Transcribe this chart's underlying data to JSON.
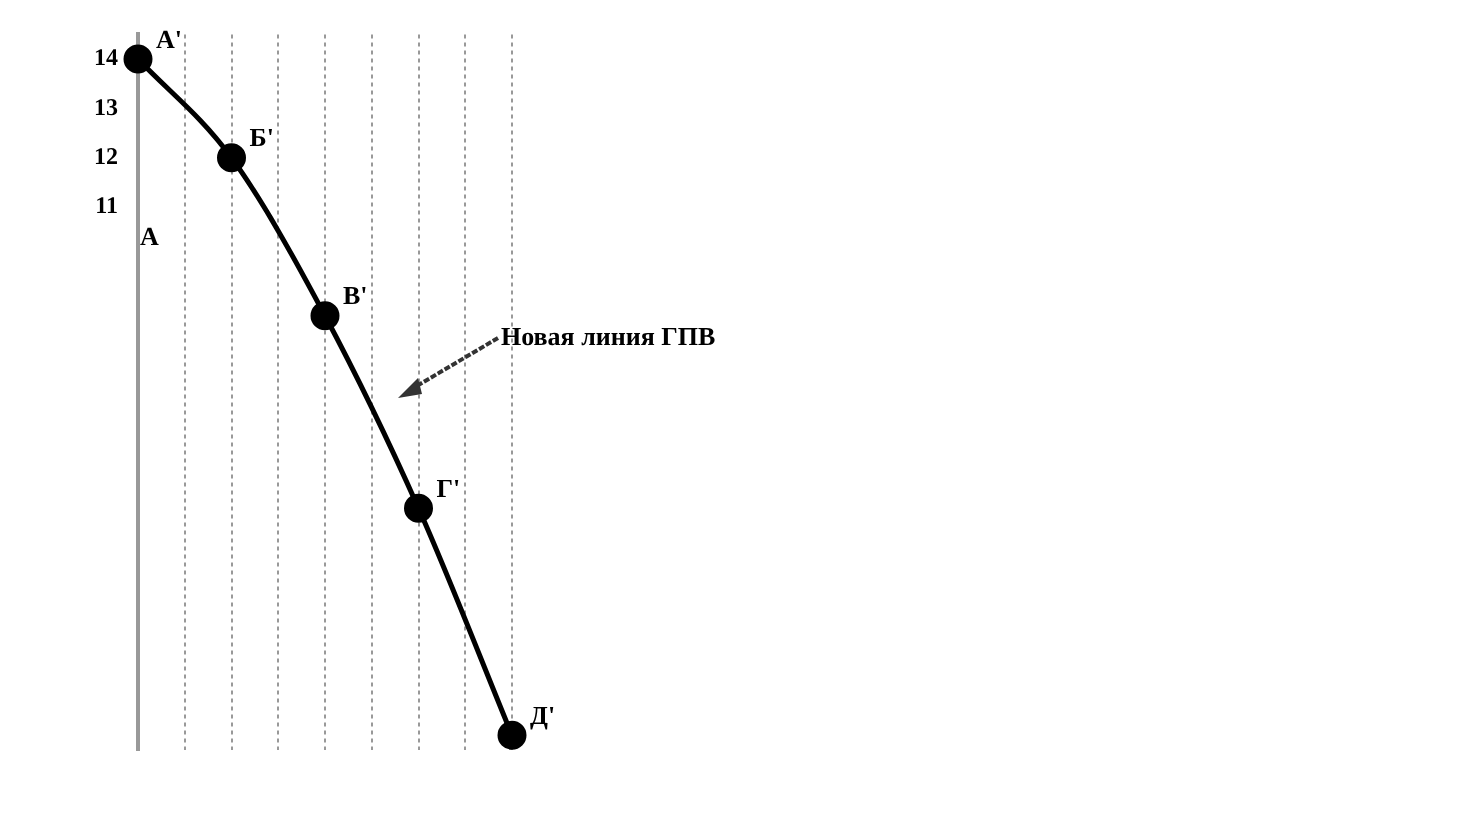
{
  "chart_data": {
    "type": "line",
    "categories": [
      null,
      null,
      null,
      null,
      null,
      null,
      null,
      null,
      null
    ],
    "series": [
      {
        "color": "#000000",
        "values": [
          14,
          null,
          12,
          null,
          8.8,
          null,
          4.9,
          null,
          0.3
        ],
        "value_labels": [
          "А'",
          null,
          "Б'",
          null,
          "В'",
          null,
          "Г'",
          null,
          "Д'"
        ]
      }
    ],
    "ylim": [
      0,
      14.5
    ],
    "yticks": [
      11,
      12,
      13,
      14
    ],
    "grid": "x",
    "marker": "circle",
    "line_style": "solid",
    "legend": false,
    "tick_labels": "y",
    "annotations": [
      "Новая линия ГПВ",
      "А"
    ]
  }
}
